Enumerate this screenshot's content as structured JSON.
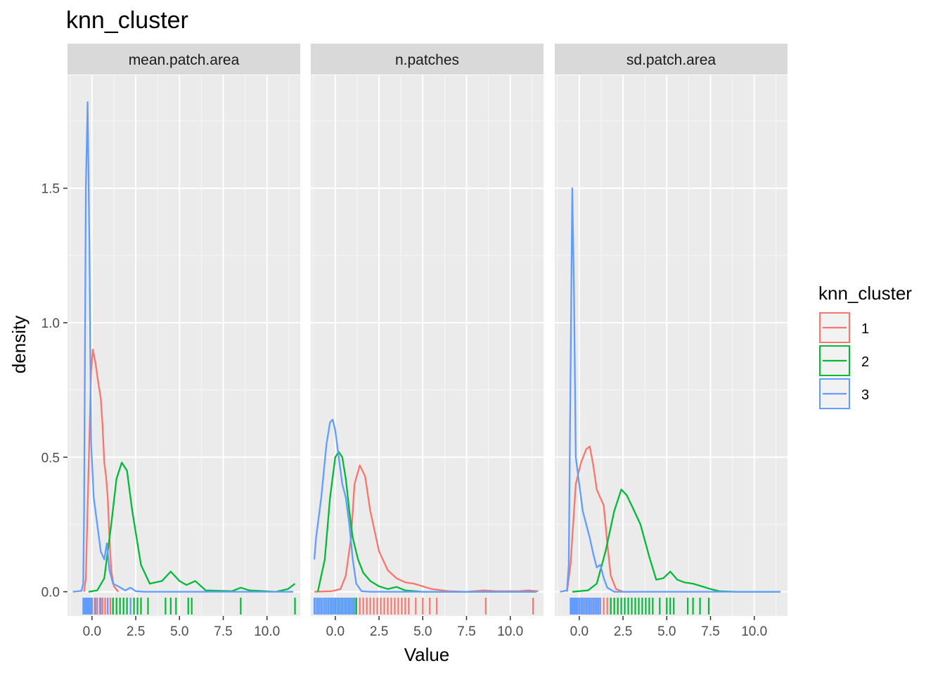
{
  "chart_data": {
    "type": "line",
    "title": "knn_cluster",
    "xlabel": "Value",
    "ylabel": "density",
    "ylim": [
      -0.09,
      1.92
    ],
    "xlim": [
      -1.4,
      11.9
    ],
    "x_ticks": [
      "0.0",
      "2.5",
      "5.0",
      "7.5",
      "10.0"
    ],
    "y_ticks": [
      "0.0",
      "0.5",
      "1.0",
      "1.5"
    ],
    "grid": true,
    "legend": {
      "title": "knn_cluster",
      "placement": "right",
      "entries": [
        {
          "label": "1",
          "color": "#F8766D"
        },
        {
          "label": "2",
          "color": "#00BA38"
        },
        {
          "label": "3",
          "color": "#619CFF"
        }
      ]
    },
    "facets": [
      {
        "label": "mean.patch.area",
        "series": [
          {
            "name": "1",
            "color": "#F8766D",
            "points": [
              [
                -0.45,
                0
              ],
              [
                -0.35,
                0.05
              ],
              [
                -0.2,
                0.45
              ],
              [
                -0.05,
                0.82
              ],
              [
                0.05,
                0.9
              ],
              [
                0.2,
                0.85
              ],
              [
                0.35,
                0.78
              ],
              [
                0.5,
                0.72
              ],
              [
                0.6,
                0.62
              ],
              [
                0.7,
                0.48
              ],
              [
                0.8,
                0.43
              ],
              [
                0.9,
                0.35
              ],
              [
                1.0,
                0.2
              ],
              [
                1.1,
                0.08
              ],
              [
                1.25,
                0.02
              ],
              [
                1.5,
                0
              ]
            ],
            "rug": [
              -0.2,
              0,
              0.15,
              0.3,
              0.45,
              0.6,
              0.75,
              0.9,
              1.05,
              1.2
            ]
          },
          {
            "name": "2",
            "color": "#00BA38",
            "points": [
              [
                -0.2,
                0
              ],
              [
                0.3,
                0.005
              ],
              [
                0.7,
                0.05
              ],
              [
                1.1,
                0.25
              ],
              [
                1.4,
                0.42
              ],
              [
                1.7,
                0.48
              ],
              [
                2.0,
                0.45
              ],
              [
                2.3,
                0.3
              ],
              [
                2.8,
                0.1
              ],
              [
                3.3,
                0.03
              ],
              [
                4.0,
                0.04
              ],
              [
                4.5,
                0.075
              ],
              [
                5.0,
                0.04
              ],
              [
                5.4,
                0.025
              ],
              [
                5.9,
                0.04
              ],
              [
                6.5,
                0.005
              ],
              [
                8.0,
                0.002
              ],
              [
                8.5,
                0.015
              ],
              [
                9.0,
                0.005
              ],
              [
                10.5,
                0
              ],
              [
                11.2,
                0.01
              ],
              [
                11.6,
                0.03
              ]
            ],
            "rug": [
              1.2,
              1.4,
              1.6,
              1.8,
              2.0,
              2.2,
              2.4,
              2.6,
              2.8,
              3.2,
              4.2,
              4.5,
              4.8,
              5.5,
              5.7,
              8.5,
              11.6
            ]
          },
          {
            "name": "3",
            "color": "#619CFF",
            "points": [
              [
                -1.1,
                0
              ],
              [
                -0.6,
                0.003
              ],
              [
                -0.5,
                0.03
              ],
              [
                -0.45,
                0.3
              ],
              [
                -0.35,
                1.5
              ],
              [
                -0.25,
                1.82
              ],
              [
                -0.15,
                1.3
              ],
              [
                -0.05,
                0.55
              ],
              [
                0.1,
                0.35
              ],
              [
                0.3,
                0.25
              ],
              [
                0.5,
                0.15
              ],
              [
                0.7,
                0.12
              ],
              [
                0.85,
                0.18
              ],
              [
                1.0,
                0.08
              ],
              [
                1.2,
                0.03
              ],
              [
                1.5,
                0.02
              ],
              [
                1.9,
                0.005
              ],
              [
                2.2,
                0.015
              ],
              [
                2.5,
                0.002
              ],
              [
                3.0,
                0
              ],
              [
                11.5,
                0
              ]
            ],
            "rug": [
              -0.5,
              -0.45,
              -0.4,
              -0.35,
              -0.3,
              -0.25,
              -0.2,
              -0.15,
              -0.1,
              -0.05,
              0,
              0.2,
              0.5,
              0.9,
              2.2
            ]
          }
        ]
      },
      {
        "label": "n.patches",
        "series": [
          {
            "name": "1",
            "color": "#F8766D",
            "points": [
              [
                -1.2,
                0
              ],
              [
                -0.2,
                0.002
              ],
              [
                0.3,
                0.01
              ],
              [
                0.6,
                0.06
              ],
              [
                0.9,
                0.2
              ],
              [
                1.1,
                0.4
              ],
              [
                1.4,
                0.47
              ],
              [
                1.7,
                0.43
              ],
              [
                2.0,
                0.3
              ],
              [
                2.5,
                0.15
              ],
              [
                3.0,
                0.08
              ],
              [
                3.5,
                0.05
              ],
              [
                4.0,
                0.035
              ],
              [
                4.5,
                0.03
              ],
              [
                5.0,
                0.02
              ],
              [
                5.5,
                0.01
              ],
              [
                6.5,
                0.002
              ],
              [
                7.5,
                0
              ],
              [
                8.5,
                0.005
              ],
              [
                9.2,
                0.002
              ],
              [
                10.5,
                0.002
              ],
              [
                11.0,
                0.005
              ],
              [
                11.6,
                0.002
              ]
            ],
            "rug": [
              0.8,
              1.0,
              1.2,
              1.4,
              1.6,
              1.8,
              2.0,
              2.2,
              2.4,
              2.6,
              2.8,
              3.0,
              3.2,
              3.4,
              3.6,
              3.8,
              4.0,
              4.2,
              4.6,
              5.0,
              5.4,
              5.8,
              8.6,
              11.3
            ]
          },
          {
            "name": "2",
            "color": "#00BA38",
            "points": [
              [
                -1.0,
                0
              ],
              [
                -0.6,
                0.12
              ],
              [
                -0.3,
                0.35
              ],
              [
                0.0,
                0.5
              ],
              [
                0.2,
                0.52
              ],
              [
                0.4,
                0.5
              ],
              [
                0.6,
                0.42
              ],
              [
                0.8,
                0.3
              ],
              [
                1.0,
                0.2
              ],
              [
                1.3,
                0.12
              ],
              [
                1.6,
                0.07
              ],
              [
                2.0,
                0.04
              ],
              [
                2.5,
                0.02
              ],
              [
                3.0,
                0.01
              ],
              [
                3.5,
                0.018
              ],
              [
                4.0,
                0.005
              ],
              [
                5.0,
                0
              ],
              [
                11.5,
                0
              ]
            ],
            "rug": [
              -0.2,
              0,
              0.2,
              0.4,
              0.6,
              0.8,
              1.0,
              1.2
            ]
          },
          {
            "name": "3",
            "color": "#619CFF",
            "points": [
              [
                -1.2,
                0.12
              ],
              [
                -1.1,
                0.2
              ],
              [
                -0.8,
                0.35
              ],
              [
                -0.5,
                0.55
              ],
              [
                -0.3,
                0.63
              ],
              [
                -0.15,
                0.64
              ],
              [
                0.0,
                0.6
              ],
              [
                0.2,
                0.5
              ],
              [
                0.4,
                0.4
              ],
              [
                0.6,
                0.35
              ],
              [
                0.8,
                0.25
              ],
              [
                1.0,
                0.12
              ],
              [
                1.2,
                0.03
              ],
              [
                1.5,
                0.002
              ],
              [
                2.0,
                0
              ],
              [
                11.5,
                0
              ]
            ],
            "rug": [
              -1.2,
              -1.1,
              -1.0,
              -0.9,
              -0.8,
              -0.7,
              -0.6,
              -0.5,
              -0.4,
              -0.3,
              -0.2,
              -0.1,
              0,
              0.1,
              0.2,
              0.3,
              0.4,
              0.5,
              0.6,
              0.7,
              0.8,
              0.9,
              1.0,
              1.1
            ]
          }
        ]
      },
      {
        "label": "sd.patch.area",
        "series": [
          {
            "name": "1",
            "color": "#F8766D",
            "points": [
              [
                -0.7,
                0
              ],
              [
                -0.5,
                0.1
              ],
              [
                -0.2,
                0.4
              ],
              [
                0.1,
                0.48
              ],
              [
                0.4,
                0.53
              ],
              [
                0.6,
                0.54
              ],
              [
                0.8,
                0.47
              ],
              [
                1.0,
                0.38
              ],
              [
                1.2,
                0.35
              ],
              [
                1.4,
                0.32
              ],
              [
                1.6,
                0.18
              ],
              [
                1.8,
                0.06
              ],
              [
                2.1,
                0.01
              ],
              [
                2.5,
                0
              ],
              [
                3.0,
                0
              ]
            ],
            "rug": [
              -0.3,
              0,
              0.2,
              0.4,
              0.6,
              0.8,
              1.0,
              1.2,
              1.4,
              1.6,
              1.8,
              2.0,
              2.2
            ]
          },
          {
            "name": "2",
            "color": "#00BA38",
            "points": [
              [
                -0.4,
                0
              ],
              [
                0.5,
                0.005
              ],
              [
                1.0,
                0.03
              ],
              [
                1.5,
                0.15
              ],
              [
                2.0,
                0.3
              ],
              [
                2.4,
                0.38
              ],
              [
                2.7,
                0.36
              ],
              [
                3.0,
                0.32
              ],
              [
                3.5,
                0.25
              ],
              [
                4.0,
                0.13
              ],
              [
                4.4,
                0.045
              ],
              [
                4.8,
                0.05
              ],
              [
                5.2,
                0.075
              ],
              [
                5.6,
                0.045
              ],
              [
                6.0,
                0.035
              ],
              [
                6.5,
                0.03
              ],
              [
                7.0,
                0.02
              ],
              [
                7.5,
                0.01
              ],
              [
                8.0,
                0.002
              ],
              [
                9.0,
                0
              ],
              [
                11.5,
                0
              ]
            ],
            "rug": [
              1.8,
              2.0,
              2.2,
              2.4,
              2.6,
              2.8,
              3.0,
              3.2,
              3.4,
              3.6,
              3.8,
              4.0,
              4.2,
              4.6,
              5.0,
              5.2,
              5.4,
              6.2,
              6.5,
              6.9,
              7.4
            ]
          },
          {
            "name": "3",
            "color": "#619CFF",
            "points": [
              [
                -1.1,
                0
              ],
              [
                -0.7,
                0.005
              ],
              [
                -0.6,
                0.1
              ],
              [
                -0.5,
                0.8
              ],
              [
                -0.4,
                1.5
              ],
              [
                -0.3,
                1.1
              ],
              [
                -0.2,
                0.5
              ],
              [
                0.0,
                0.4
              ],
              [
                0.2,
                0.3
              ],
              [
                0.4,
                0.25
              ],
              [
                0.6,
                0.2
              ],
              [
                0.8,
                0.14
              ],
              [
                1.0,
                0.09
              ],
              [
                1.2,
                0.1
              ],
              [
                1.4,
                0.05
              ],
              [
                1.6,
                0.015
              ],
              [
                2.0,
                0
              ],
              [
                11.5,
                0
              ]
            ],
            "rug": [
              -0.5,
              -0.45,
              -0.4,
              -0.35,
              -0.3,
              -0.25,
              -0.2,
              -0.15,
              -0.1,
              0,
              0.1,
              0.2,
              0.3,
              0.4,
              0.5,
              0.6,
              0.7,
              0.8,
              0.9,
              1.0,
              1.1,
              1.2
            ]
          }
        ]
      }
    ]
  }
}
